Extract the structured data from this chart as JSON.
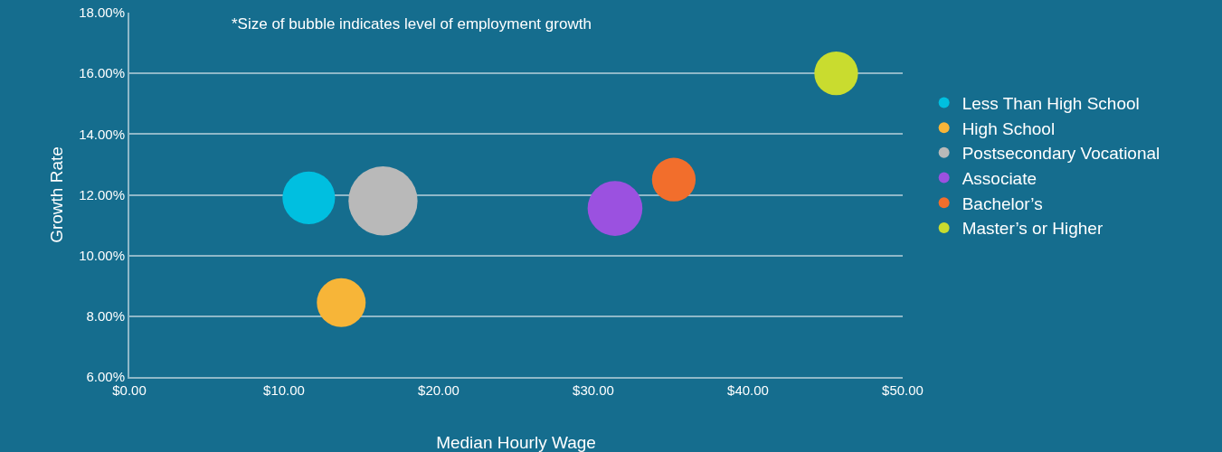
{
  "chart_data": {
    "type": "bubble",
    "xlabel": "Median Hourly Wage",
    "ylabel": "Growth Rate",
    "annotations": [
      "*Size of bubble indicates level of employment growth"
    ],
    "series": [
      {
        "name": "Less Than High School",
        "color": "#00bfe0",
        "x": [
          11.6
        ],
        "values": [
          11.9
        ],
        "sizes": [
          0.58
        ]
      },
      {
        "name": "High School",
        "color": "#f7b538",
        "x": [
          13.7
        ],
        "values": [
          8.45
        ],
        "sizes": [
          0.5
        ]
      },
      {
        "name": "Postsecondary Vocational",
        "color": "#b9b9b9",
        "x": [
          16.4
        ],
        "values": [
          11.8
        ],
        "sizes": [
          1
        ]
      },
      {
        "name": "Associate",
        "color": "#9b51e0",
        "x": [
          31.4
        ],
        "values": [
          11.55
        ],
        "sizes": [
          0.63
        ]
      },
      {
        "name": "Bachelor’s",
        "color": "#f26e2c",
        "x": [
          35.2
        ],
        "values": [
          12.5
        ],
        "sizes": [
          0.4
        ]
      },
      {
        "name": "Master’s or Higher",
        "color": "#c9dc2f",
        "x": [
          45.7
        ],
        "values": [
          16
        ],
        "sizes": [
          0.4
        ]
      }
    ],
    "xlim": [
      0,
      50
    ],
    "xticks": [
      {
        "value": 0,
        "label": "$0.00"
      },
      {
        "value": 10,
        "label": "$10.00"
      },
      {
        "value": 20,
        "label": "$20.00"
      },
      {
        "value": 30,
        "label": "$30.00"
      },
      {
        "value": 40,
        "label": "$40.00"
      },
      {
        "value": 50,
        "label": "$50.00"
      }
    ],
    "ylim": [
      6,
      18
    ],
    "yticks": [
      {
        "value": 6,
        "label": "6.00%"
      },
      {
        "value": 8,
        "label": "8.00%"
      },
      {
        "value": 10,
        "label": "10.00%"
      },
      {
        "value": 12,
        "label": "12.00%"
      },
      {
        "value": 14,
        "label": "14.00%"
      },
      {
        "value": 16,
        "label": "16.00%"
      },
      {
        "value": 18,
        "label": "18.00%"
      }
    ],
    "grid": "y",
    "legend": "right",
    "marker": "circle"
  }
}
